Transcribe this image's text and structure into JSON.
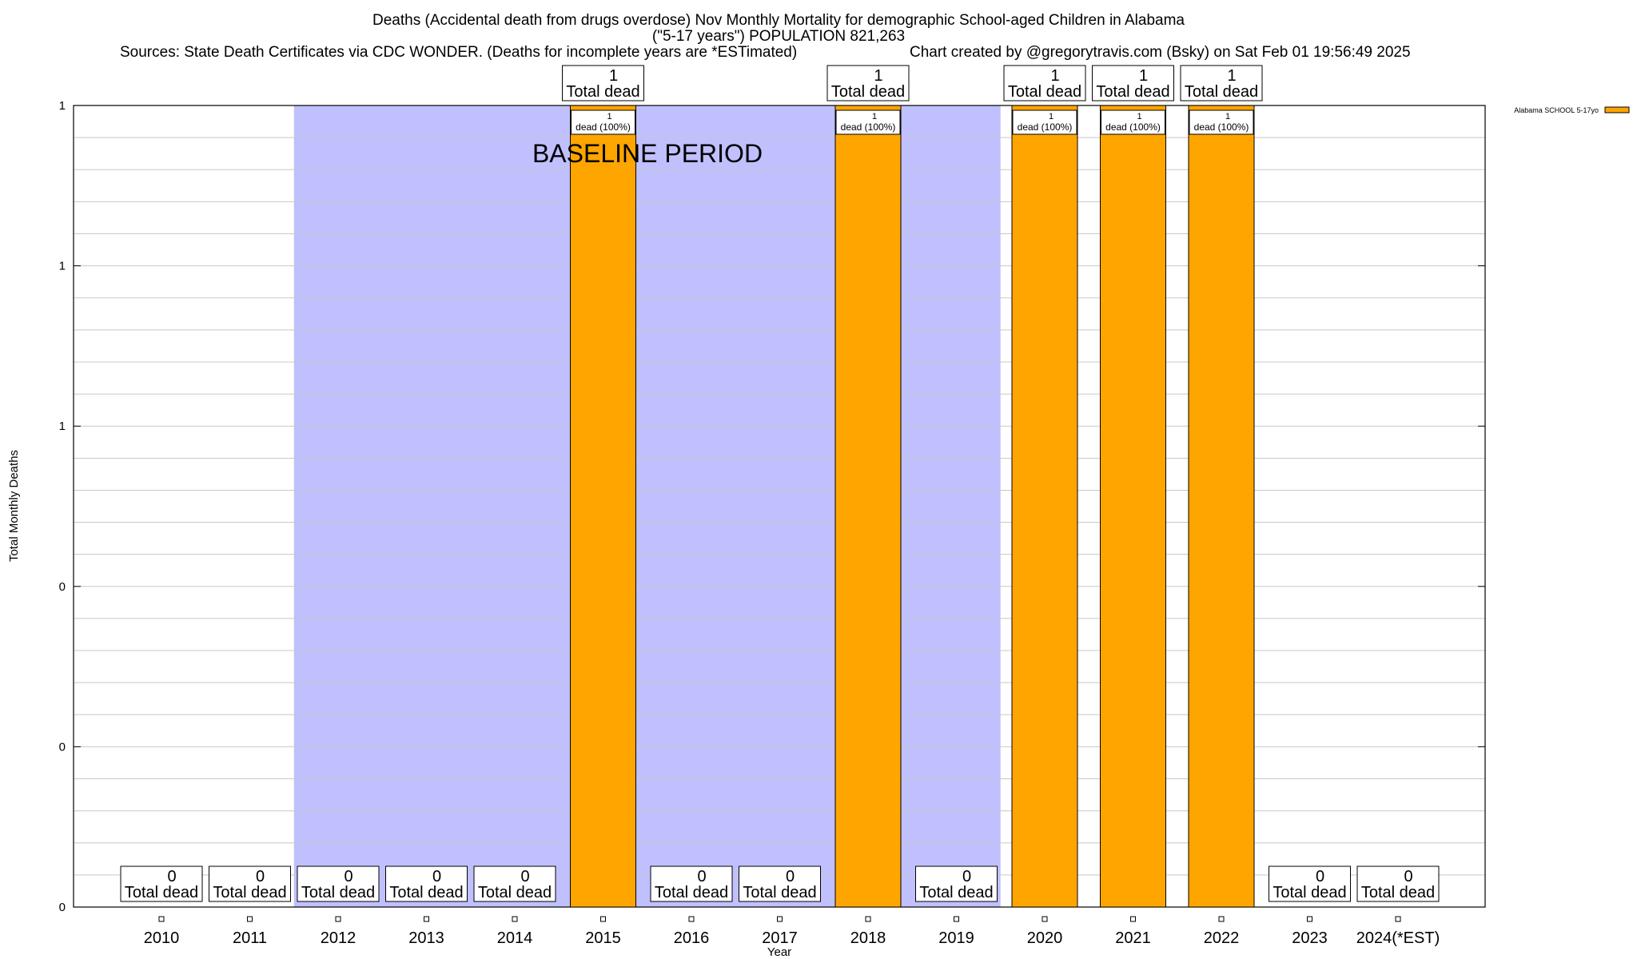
{
  "chart_data": {
    "type": "bar",
    "title_lines": [
      "Deaths (Accidental death from drugs overdose) Nov Monthly Mortality for demographic School-aged Children in Alabama",
      "(\"5-17 years\") POPULATION 821,263"
    ],
    "sources": "Sources: State Death Certificates via CDC WONDER. (Deaths for incomplete years are *ESTimated)",
    "credit": "Chart created by @gregorytravis.com (Bsky) on Sat Feb 01 19:56:49 2025",
    "xlabel": "Year",
    "ylabel": "Total Monthly Deaths",
    "ylim": [
      0,
      1
    ],
    "y_tick_values": [
      0,
      0.2,
      0.4,
      0.6,
      0.8,
      1
    ],
    "y_tick_labels": [
      "0",
      "0",
      "0",
      "1",
      "1",
      "1"
    ],
    "grid": true,
    "categories": [
      "2010",
      "2011",
      "2012",
      "2013",
      "2014",
      "2015",
      "2016",
      "2017",
      "2018",
      "2019",
      "2020",
      "2021",
      "2022",
      "2023",
      "2024(*EST)"
    ],
    "series": [
      {
        "name": "Alabama SCHOOL 5-17yo",
        "color": "#ffa500",
        "values": [
          0,
          0,
          0,
          0,
          0,
          1,
          0,
          0,
          1,
          0,
          1,
          1,
          1,
          0,
          0
        ]
      }
    ],
    "total_labels": [
      "Total dead",
      "Total dead",
      "Total dead",
      "Total dead",
      "Total dead",
      "Total dead",
      "Total dead",
      "Total dead",
      "Total dead",
      "Total dead",
      "Total dead",
      "Total dead",
      "Total dead",
      "Total dead",
      "Total dead"
    ],
    "bar_labels": [
      "",
      "",
      "",
      "",
      "",
      "1\ndead (100%)",
      "",
      "",
      "1\ndead (100%)",
      "",
      "1\ndead (100%)",
      "1\ndead (100%)",
      "1\ndead (100%)",
      "",
      ""
    ],
    "baseline": {
      "label": "BASELINE PERIOD",
      "start": "2012",
      "end": "2019",
      "color": "#c0c0ff"
    },
    "legend_position": "top-right"
  }
}
